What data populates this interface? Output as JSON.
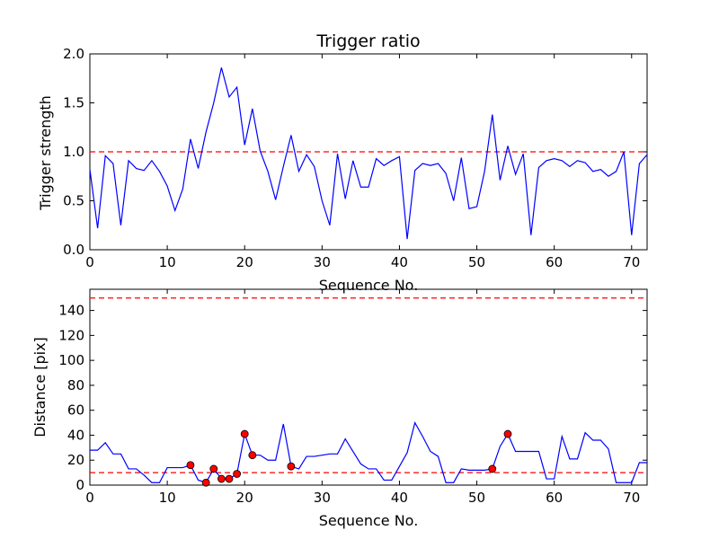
{
  "chart_data": [
    {
      "type": "line",
      "title": "Trigger ratio",
      "xlabel": "Sequence No.",
      "ylabel": "Trigger strength",
      "xlim": [
        0,
        72
      ],
      "ylim": [
        0,
        2.0
      ],
      "xticks": [
        0,
        10,
        20,
        30,
        40,
        50,
        60,
        70
      ],
      "xtick_labels": [
        "0",
        "10",
        "20",
        "30",
        "40",
        "50",
        "60",
        "70"
      ],
      "yticks": [
        0,
        0.5,
        1.0,
        1.5,
        2.0
      ],
      "ytick_labels": [
        "0.0",
        "0.5",
        "1.0",
        "1.5",
        "2.0"
      ],
      "series": [
        {
          "name": "trigger strength",
          "color": "#0000ff",
          "x": [
            0,
            1,
            2,
            3,
            4,
            5,
            6,
            7,
            8,
            9,
            10,
            11,
            12,
            13,
            14,
            15,
            16,
            17,
            18,
            19,
            20,
            21,
            22,
            23,
            24,
            25,
            26,
            27,
            28,
            29,
            30,
            31,
            32,
            33,
            34,
            35,
            36,
            37,
            38,
            39,
            40,
            41,
            42,
            43,
            44,
            45,
            46,
            47,
            48,
            49,
            50,
            51,
            52,
            53,
            54,
            55,
            56,
            57,
            58,
            59,
            60,
            61,
            62,
            63,
            64,
            65,
            66,
            67,
            68,
            69,
            70,
            71,
            72
          ],
          "values": [
            0.82,
            0.22,
            0.96,
            0.88,
            0.25,
            0.91,
            0.83,
            0.81,
            0.91,
            0.8,
            0.65,
            0.4,
            0.62,
            1.13,
            0.83,
            1.2,
            1.5,
            1.86,
            1.56,
            1.66,
            1.07,
            1.44,
            1.01,
            0.8,
            0.51,
            0.85,
            1.17,
            0.8,
            0.97,
            0.85,
            0.5,
            0.25,
            0.98,
            0.52,
            0.91,
            0.64,
            0.64,
            0.93,
            0.86,
            0.91,
            0.95,
            0.11,
            0.81,
            0.88,
            0.86,
            0.88,
            0.78,
            0.5,
            0.94,
            0.42,
            0.44,
            0.8,
            1.38,
            0.71,
            1.06,
            0.77,
            0.98,
            0.15,
            0.84,
            0.91,
            0.93,
            0.91,
            0.85,
            0.91,
            0.89,
            0.8,
            0.82,
            0.75,
            0.8,
            1.0,
            0.15,
            0.88,
            0.97
          ]
        }
      ],
      "hlines": [
        {
          "y": 1.0,
          "color": "#ff0000",
          "style": "dashed"
        }
      ]
    },
    {
      "type": "line",
      "title": "",
      "xlabel": "Sequence No.",
      "ylabel": "Distance [pix]",
      "xlim": [
        0,
        72
      ],
      "ylim": [
        0,
        157
      ],
      "xticks": [
        0,
        10,
        20,
        30,
        40,
        50,
        60,
        70
      ],
      "xtick_labels": [
        "0",
        "10",
        "20",
        "30",
        "40",
        "50",
        "60",
        "70"
      ],
      "yticks": [
        0,
        20,
        40,
        60,
        80,
        100,
        120,
        140
      ],
      "ytick_labels": [
        "0",
        "20",
        "40",
        "60",
        "80",
        "100",
        "120",
        "140"
      ],
      "series": [
        {
          "name": "distance",
          "color": "#0000ff",
          "x": [
            0,
            1,
            2,
            3,
            4,
            5,
            6,
            7,
            8,
            9,
            10,
            11,
            12,
            13,
            14,
            15,
            16,
            17,
            18,
            19,
            20,
            21,
            22,
            23,
            24,
            25,
            26,
            27,
            28,
            29,
            30,
            31,
            32,
            33,
            34,
            35,
            36,
            37,
            38,
            39,
            40,
            41,
            42,
            43,
            44,
            45,
            46,
            47,
            48,
            49,
            50,
            51,
            52,
            53,
            54,
            55,
            56,
            57,
            58,
            59,
            60,
            61,
            62,
            63,
            64,
            65,
            66,
            67,
            68,
            69,
            70,
            71,
            72
          ],
          "values": [
            28,
            28,
            34,
            25,
            25,
            13,
            13,
            8,
            2,
            2,
            14,
            14,
            14,
            16,
            4,
            2,
            13,
            5,
            5,
            9,
            41,
            24,
            24,
            20,
            20,
            49,
            15,
            13,
            23,
            23,
            24,
            25,
            25,
            37,
            27,
            17,
            13,
            13,
            4,
            4,
            15,
            26,
            50,
            39,
            27,
            23,
            2,
            2,
            13,
            12,
            12,
            12,
            13,
            31,
            41,
            27,
            27,
            27,
            27,
            5,
            5,
            39,
            21,
            21,
            42,
            36,
            36,
            29,
            2,
            2,
            2,
            18,
            18
          ],
          "markers": {
            "color": "#ff0000",
            "x": [
              13,
              15,
              16,
              17,
              18,
              19,
              20,
              21,
              26,
              52,
              54
            ],
            "values": [
              16,
              2,
              13,
              5,
              5,
              9,
              41,
              24,
              15,
              13,
              41
            ]
          }
        }
      ],
      "hlines": [
        {
          "y": 10,
          "color": "#ff0000",
          "style": "dashed"
        },
        {
          "y": 150,
          "color": "#ff0000",
          "style": "dashed"
        }
      ]
    }
  ]
}
